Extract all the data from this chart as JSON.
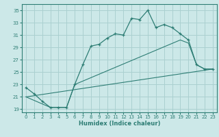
{
  "xlabel": "Humidex (Indice chaleur)",
  "bg_color": "#cce8e8",
  "grid_color": "#aad0d0",
  "line_color": "#2d7d74",
  "xlim": [
    -0.5,
    23.5
  ],
  "ylim": [
    18.5,
    36.0
  ],
  "xticks": [
    0,
    1,
    2,
    3,
    4,
    5,
    6,
    7,
    8,
    9,
    10,
    11,
    12,
    13,
    14,
    15,
    16,
    17,
    18,
    19,
    20,
    21,
    22,
    23
  ],
  "yticks": [
    19,
    21,
    23,
    25,
    27,
    29,
    31,
    33,
    35
  ],
  "main_line_x": [
    0,
    1,
    2,
    3,
    4,
    5,
    6,
    7,
    8,
    9,
    10,
    11,
    12,
    13,
    14,
    15,
    16,
    17,
    18,
    19,
    20,
    21,
    22,
    23
  ],
  "main_line_y": [
    22.5,
    21.5,
    20.3,
    19.3,
    19.3,
    19.3,
    23.0,
    26.2,
    29.2,
    29.5,
    30.5,
    31.2,
    31.0,
    33.7,
    33.5,
    35.0,
    32.2,
    32.7,
    32.2,
    31.2,
    30.2,
    26.2,
    25.5,
    25.5
  ],
  "line2_x": [
    0,
    23
  ],
  "line2_y": [
    21.0,
    25.5
  ],
  "line3_x": [
    0,
    3,
    4,
    5,
    6,
    19,
    20,
    21,
    22,
    23
  ],
  "line3_y": [
    21.0,
    19.3,
    19.3,
    19.3,
    23.0,
    30.2,
    29.7,
    26.2,
    25.5,
    25.5
  ]
}
